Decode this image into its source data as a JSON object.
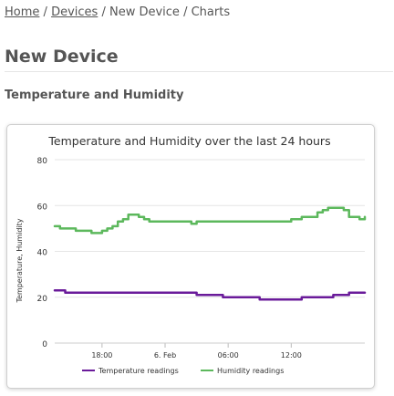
{
  "breadcrumb": {
    "home": "Home",
    "sep1": "/",
    "devices": "Devices",
    "sep2": "/",
    "device": "New Device",
    "sep3": "/",
    "current": "Charts"
  },
  "page": {
    "title": "New Device",
    "section_title": "Temperature and Humidity"
  },
  "chart_data": {
    "type": "line",
    "title": "Temperature and Humidity over the last 24 hours",
    "ylabel": "Temperature, Humidity",
    "xlabel": "",
    "ylim": [
      0,
      80
    ],
    "yticks": [
      0,
      20,
      40,
      60,
      80
    ],
    "xticks": [
      "18:00",
      "6. Feb",
      "06:00",
      "12:00"
    ],
    "grid": true,
    "legend_position": "bottom-center",
    "series": [
      {
        "name": "Temperature readings",
        "color": "#6a1b9a",
        "points": [
          [
            13.5,
            23
          ],
          [
            14.2,
            23
          ],
          [
            14.5,
            22
          ],
          [
            16,
            22
          ],
          [
            18,
            22
          ],
          [
            20,
            22
          ],
          [
            22,
            22
          ],
          [
            24,
            22
          ],
          [
            26.5,
            22
          ],
          [
            27,
            21
          ],
          [
            29,
            21
          ],
          [
            29.5,
            20
          ],
          [
            31,
            20
          ],
          [
            32.5,
            20
          ],
          [
            33,
            19
          ],
          [
            35,
            19
          ],
          [
            36.5,
            19
          ],
          [
            37,
            20
          ],
          [
            39,
            20
          ],
          [
            40,
            21
          ],
          [
            41,
            21
          ],
          [
            41.5,
            22
          ],
          [
            43,
            22
          ]
        ]
      },
      {
        "name": "Humidity readings",
        "color": "#5cb85c",
        "points": [
          [
            13.5,
            51
          ],
          [
            14,
            50
          ],
          [
            15,
            50
          ],
          [
            15.5,
            49
          ],
          [
            16.5,
            49
          ],
          [
            17,
            48
          ],
          [
            18,
            49
          ],
          [
            18.5,
            50
          ],
          [
            19,
            51
          ],
          [
            19.5,
            53
          ],
          [
            20,
            54
          ],
          [
            20.5,
            56
          ],
          [
            21,
            56
          ],
          [
            21.5,
            55
          ],
          [
            22,
            54
          ],
          [
            22.5,
            53
          ],
          [
            24,
            53
          ],
          [
            25,
            53
          ],
          [
            26.5,
            52
          ],
          [
            27,
            53
          ],
          [
            29,
            53
          ],
          [
            30,
            53
          ],
          [
            31,
            53
          ],
          [
            32,
            53
          ],
          [
            33,
            53
          ],
          [
            34,
            53
          ],
          [
            35,
            53
          ],
          [
            36,
            54
          ],
          [
            37,
            55
          ],
          [
            38,
            55
          ],
          [
            38.5,
            57
          ],
          [
            39,
            58
          ],
          [
            39.5,
            59
          ],
          [
            40,
            59
          ],
          [
            41,
            58
          ],
          [
            41.5,
            55
          ],
          [
            42,
            55
          ],
          [
            42.5,
            54
          ],
          [
            43,
            55
          ]
        ]
      }
    ]
  }
}
